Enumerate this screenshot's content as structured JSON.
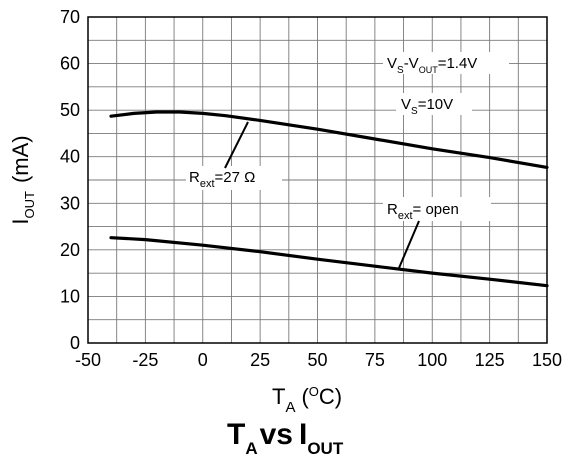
{
  "chart_data": {
    "type": "line",
    "x_axis": {
      "label_main": "T",
      "label_sub": "A",
      "unit_open": "(",
      "unit_sup": "O",
      "unit_rest": "C)",
      "min": -50,
      "max": 150,
      "ticks": [
        -50,
        -25,
        0,
        25,
        50,
        75,
        100,
        125,
        150
      ],
      "tick_labels": [
        "-50",
        "-25",
        "0",
        "25",
        "50",
        "75",
        "100",
        "125",
        "150"
      ],
      "minor_step": 12.5
    },
    "y_axis": {
      "label_main": "I",
      "label_sub": "OUT",
      "unit": "(mA)",
      "min": 0,
      "max": 70,
      "ticks": [
        0,
        10,
        20,
        30,
        40,
        50,
        60,
        70
      ],
      "tick_labels": [
        "0",
        "10",
        "20",
        "30",
        "40",
        "50",
        "60",
        "70"
      ],
      "minor_step": 5
    },
    "grid": true,
    "series": [
      {
        "name": "Rext=27 Ω",
        "points": [
          [
            -40,
            48.7
          ],
          [
            -30,
            49.3
          ],
          [
            -20,
            49.6
          ],
          [
            -10,
            49.6
          ],
          [
            0,
            49.3
          ],
          [
            10,
            48.8
          ],
          [
            25,
            47.8
          ],
          [
            50,
            45.9
          ],
          [
            75,
            43.8
          ],
          [
            100,
            41.7
          ],
          [
            125,
            39.8
          ],
          [
            150,
            37.7
          ]
        ]
      },
      {
        "name": "Rext= open",
        "points": [
          [
            -40,
            22.6
          ],
          [
            -25,
            22.2
          ],
          [
            0,
            21.0
          ],
          [
            25,
            19.6
          ],
          [
            50,
            18.0
          ],
          [
            75,
            16.5
          ],
          [
            100,
            15.0
          ],
          [
            125,
            13.7
          ],
          [
            150,
            12.3
          ]
        ]
      }
    ],
    "annotations": {
      "cond1": {
        "pre": "V",
        "s1": "S",
        "mid": "-V",
        "s2": "OUT",
        "post": "=1.4V"
      },
      "cond2": {
        "pre": "V",
        "s1": "S",
        "post": "=10V"
      },
      "label_27": {
        "pre": "R",
        "sub": "ext",
        "post": "=27 Ω"
      },
      "label_open": {
        "pre": "R",
        "sub": "ext",
        "post": "= open"
      }
    },
    "title": {
      "t": "T",
      "t_sub": "A",
      "vs": "vs",
      "i": "I",
      "i_sub": "OUT"
    }
  }
}
